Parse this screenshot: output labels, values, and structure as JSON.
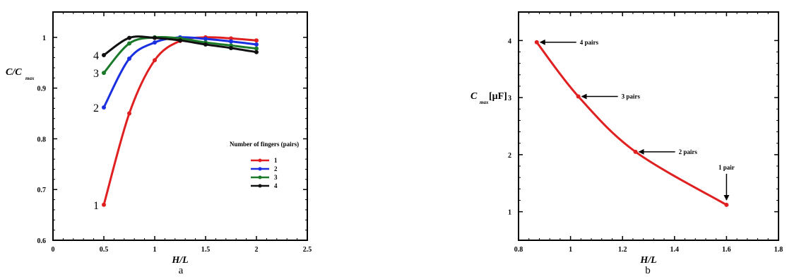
{
  "chart_data": [
    {
      "type": "line",
      "panel_label": "a",
      "xlabel": "H/L",
      "ylabel_main": "C/C",
      "ylabel_sub": "max",
      "xlim": [
        0,
        2.5
      ],
      "ylim": [
        0.6,
        1.05
      ],
      "xticks": [
        0,
        0.5,
        1,
        1.5,
        2,
        2.5
      ],
      "xtick_labels": [
        "0",
        "0.5",
        "1",
        "1.5",
        "2",
        "2.5"
      ],
      "yticks": [
        0.6,
        0.7,
        0.8,
        0.9,
        1
      ],
      "ytick_labels": [
        "0.6",
        "0.7",
        "0.8",
        "0.9",
        "1"
      ],
      "legend_title": "Number of fingers (pairs)",
      "legend_placement": "center-right",
      "series": [
        {
          "name": "1",
          "curve_label": "1",
          "color": "#e02020",
          "x": [
            0.5,
            0.75,
            1,
            1.25,
            1.5,
            1.75,
            2
          ],
          "y": [
            0.67,
            0.85,
            0.955,
            0.993,
            1.0,
            0.998,
            0.994
          ]
        },
        {
          "name": "2",
          "curve_label": "2",
          "color": "#1a2fe0",
          "x": [
            0.5,
            0.75,
            1,
            1.25,
            1.5,
            1.75,
            2
          ],
          "y": [
            0.862,
            0.958,
            0.99,
            1.0,
            0.997,
            0.992,
            0.986
          ]
        },
        {
          "name": "3",
          "curve_label": "3",
          "color": "#1a7a2a",
          "x": [
            0.5,
            0.75,
            1,
            1.25,
            1.5,
            1.75,
            2
          ],
          "y": [
            0.93,
            0.988,
            1.0,
            0.998,
            0.99,
            0.984,
            0.978
          ]
        },
        {
          "name": "4",
          "curve_label": "4",
          "color": "#111111",
          "x": [
            0.5,
            0.75,
            1,
            1.25,
            1.5,
            1.75,
            2
          ],
          "y": [
            0.965,
            0.999,
            0.999,
            0.994,
            0.986,
            0.979,
            0.971
          ]
        }
      ]
    },
    {
      "type": "line",
      "panel_label": "b",
      "xlabel": "H/L",
      "ylabel_main": "C",
      "ylabel_sub": "max",
      "ylabel_unit": "[μF]",
      "xlim": [
        0.8,
        1.8
      ],
      "ylim": [
        0.5,
        4.5
      ],
      "xticks": [
        0.8,
        1,
        1.2,
        1.4,
        1.6,
        1.8
      ],
      "xtick_labels": [
        "0.8",
        "1",
        "1.2",
        "1.4",
        "1.6",
        "1.8"
      ],
      "yticks": [
        1,
        2,
        3,
        4
      ],
      "ytick_labels": [
        "1",
        "2",
        "3",
        "4"
      ],
      "series": [
        {
          "color": "#e02020",
          "x": [
            0.87,
            1.03,
            1.25,
            1.6
          ],
          "y": [
            3.97,
            3.02,
            2.05,
            1.12
          ]
        }
      ],
      "annotations": [
        {
          "text": "4 pairs",
          "x": 0.87,
          "y": 3.97,
          "arrow": "left"
        },
        {
          "text": "3 pairs",
          "x": 1.03,
          "y": 3.02,
          "arrow": "left"
        },
        {
          "text": "2 pairs",
          "x": 1.25,
          "y": 2.05,
          "arrow": "left"
        },
        {
          "text": "1 pair",
          "x": 1.6,
          "y": 1.12,
          "arrow": "down"
        }
      ]
    }
  ]
}
